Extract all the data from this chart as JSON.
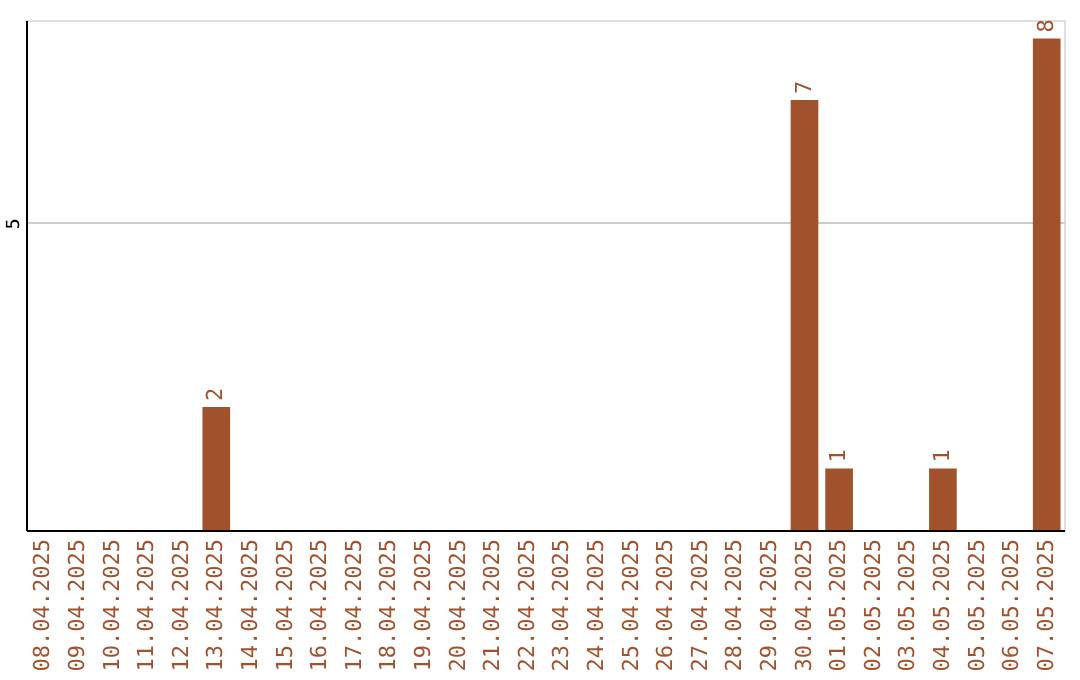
{
  "chart_data": {
    "type": "bar",
    "categories": [
      "08.04.2025",
      "09.04.2025",
      "10.04.2025",
      "11.04.2025",
      "12.04.2025",
      "13.04.2025",
      "14.04.2025",
      "15.04.2025",
      "16.04.2025",
      "17.04.2025",
      "18.04.2025",
      "19.04.2025",
      "20.04.2025",
      "21.04.2025",
      "22.04.2025",
      "23.04.2025",
      "24.04.2025",
      "25.04.2025",
      "26.04.2025",
      "27.04.2025",
      "28.04.2025",
      "29.04.2025",
      "30.04.2025",
      "01.05.2025",
      "02.05.2025",
      "03.05.2025",
      "04.05.2025",
      "05.05.2025",
      "06.05.2025",
      "07.05.2025"
    ],
    "values": [
      0,
      0,
      0,
      0,
      0,
      2,
      0,
      0,
      0,
      0,
      0,
      0,
      0,
      0,
      0,
      0,
      0,
      0,
      0,
      0,
      0,
      0,
      7,
      1,
      0,
      0,
      1,
      0,
      0,
      8
    ],
    "value_labels": [
      null,
      null,
      null,
      null,
      null,
      "2",
      null,
      null,
      null,
      null,
      null,
      null,
      null,
      null,
      null,
      null,
      null,
      null,
      null,
      null,
      null,
      null,
      "7",
      "1",
      null,
      null,
      "1",
      null,
      null,
      "8"
    ],
    "color": "#a0522d",
    "ylim": [
      0,
      8.3
    ],
    "yticks": [
      5
    ],
    "grid": "y"
  }
}
